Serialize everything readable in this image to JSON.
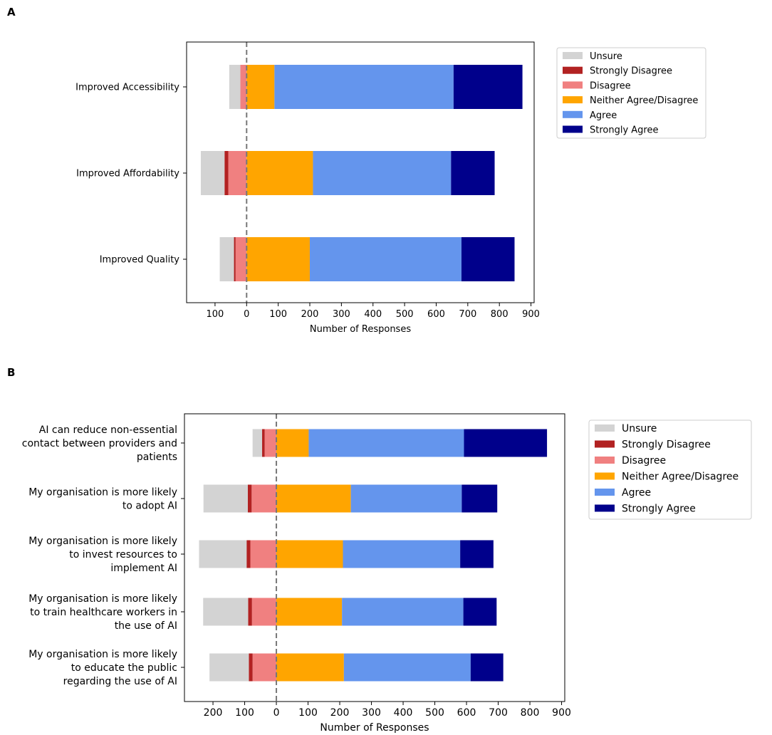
{
  "panels": [
    {
      "label": "A"
    },
    {
      "label": "B"
    }
  ],
  "legend": [
    {
      "name": "Unsure",
      "color": "#d3d3d3"
    },
    {
      "name": "Strongly Disagree",
      "color": "#b22222"
    },
    {
      "name": "Disagree",
      "color": "#f08080"
    },
    {
      "name": "Neither Agree/Disagree",
      "color": "#ffa500"
    },
    {
      "name": "Agree",
      "color": "#6495ed"
    },
    {
      "name": "Strongly Agree",
      "color": "#00008b"
    }
  ],
  "chart_data": [
    {
      "type": "bar",
      "orientation": "horizontal-diverging",
      "panel": "A",
      "xlabel": "Number of Responses",
      "xlim": [
        -190,
        910
      ],
      "xticks": [
        -100,
        0,
        100,
        200,
        300,
        400,
        500,
        600,
        700,
        800,
        900
      ],
      "xtick_labels": [
        "100",
        "0",
        "100",
        "200",
        "300",
        "400",
        "500",
        "600",
        "700",
        "800",
        "900"
      ],
      "legend_position": "outside-right-top",
      "categories": [
        "Improved Accessibility",
        "Improved Affordability",
        "Improved Quality"
      ],
      "series": [
        {
          "name": "Unsure",
          "values": [
            35,
            75,
            45
          ],
          "side": "negative"
        },
        {
          "name": "Strongly Disagree",
          "values": [
            0,
            12,
            5
          ],
          "side": "negative"
        },
        {
          "name": "Disagree",
          "values": [
            20,
            58,
            35
          ],
          "side": "negative"
        },
        {
          "name": "Neither Agree/Disagree",
          "values": [
            88,
            210,
            200
          ],
          "side": "positive"
        },
        {
          "name": "Agree",
          "values": [
            567,
            437,
            480
          ],
          "side": "positive"
        },
        {
          "name": "Strongly Agree",
          "values": [
            218,
            138,
            168
          ],
          "side": "positive"
        }
      ]
    },
    {
      "type": "bar",
      "orientation": "horizontal-diverging",
      "panel": "B",
      "xlabel": "Number of Responses",
      "xlim": [
        -290,
        910
      ],
      "xticks": [
        -200,
        -100,
        0,
        100,
        200,
        300,
        400,
        500,
        600,
        700,
        800,
        900
      ],
      "xtick_labels": [
        "200",
        "100",
        "0",
        "100",
        "200",
        "300",
        "400",
        "500",
        "600",
        "700",
        "800",
        "900"
      ],
      "legend_position": "outside-right-top",
      "categories": [
        "AI can reduce non-essential contact between providers and patients",
        "My organisation is more likely to adopt AI",
        "My organisation is more likely to invest resources to implement AI",
        "My organisation is more likely to train healthcare workers in the use of AI",
        "My organisation is more likely to educate the public regarding the use of AI"
      ],
      "category_lines": [
        [
          "AI can reduce non-essential",
          "contact between providers and",
          "patients"
        ],
        [
          "My organisation is more likely",
          "to adopt AI"
        ],
        [
          "My organisation is more likely",
          "to invest resources to",
          "implement AI"
        ],
        [
          "My organisation is more likely",
          "to train healthcare workers in",
          "the use of AI"
        ],
        [
          "My organisation is more likely",
          "to educate the public",
          "regarding the use of AI"
        ]
      ],
      "series": [
        {
          "name": "Unsure",
          "values": [
            30,
            140,
            150,
            142,
            124
          ],
          "side": "negative"
        },
        {
          "name": "Strongly Disagree",
          "values": [
            8,
            12,
            12,
            12,
            12
          ],
          "side": "negative"
        },
        {
          "name": "Disagree",
          "values": [
            37,
            78,
            82,
            77,
            75
          ],
          "side": "negative"
        },
        {
          "name": "Neither Agree/Disagree",
          "values": [
            102,
            235,
            210,
            207,
            213
          ],
          "side": "positive"
        },
        {
          "name": "Agree",
          "values": [
            490,
            350,
            370,
            383,
            400
          ],
          "side": "positive"
        },
        {
          "name": "Strongly Agree",
          "values": [
            262,
            112,
            105,
            105,
            103
          ],
          "side": "positive"
        }
      ]
    }
  ]
}
